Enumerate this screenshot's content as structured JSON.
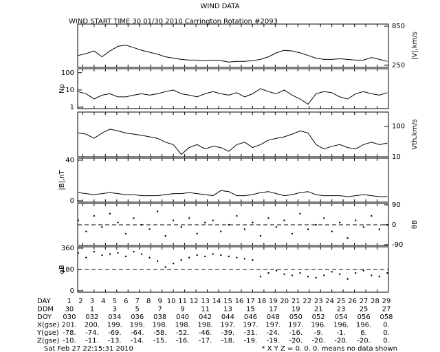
{
  "title": "WIND DATA",
  "subtitle": "WIND START TIME  30 01/30 2010 Carrington Rotation #2093",
  "chart_data": [
    {
      "type": "line",
      "axis_label": "|V|,km/s",
      "axis_side": "right",
      "log": false,
      "color": "#000000",
      "xlim": [
        1.55,
        29
      ],
      "ylim": [
        218,
        882
      ],
      "yticks": [
        850,
        250
      ],
      "x": [
        1.6,
        2.3,
        3.0,
        3.7,
        4.4,
        5.1,
        5.8,
        6.5,
        7.2,
        7.9,
        8.6,
        9.3,
        10.0,
        10.7,
        11.4,
        12.1,
        12.8,
        13.5,
        14.2,
        14.9,
        15.6,
        16.3,
        17.0,
        17.7,
        18.4,
        19.1,
        19.8,
        20.5,
        21.2,
        21.9,
        22.6,
        23.3,
        24.0,
        24.7,
        25.4,
        26.1,
        26.8,
        27.5,
        28.2,
        28.9
      ],
      "values": [
        400,
        430,
        470,
        380,
        470,
        540,
        560,
        520,
        480,
        450,
        420,
        380,
        360,
        340,
        330,
        330,
        320,
        330,
        320,
        300,
        310,
        310,
        320,
        340,
        380,
        440,
        480,
        470,
        440,
        400,
        360,
        340,
        340,
        350,
        340,
        330,
        330,
        370,
        340,
        310
      ]
    },
    {
      "type": "line",
      "axis_label": "Np",
      "axis_side": "left",
      "log": true,
      "color": "#000000",
      "xlim": [
        1.55,
        29
      ],
      "ylim": [
        0.83,
        170
      ],
      "yticks": [
        100,
        10,
        1
      ],
      "x": [
        1.6,
        2.3,
        3.0,
        3.7,
        4.4,
        5.1,
        5.8,
        6.5,
        7.2,
        7.9,
        8.6,
        9.3,
        10.0,
        10.7,
        11.4,
        12.1,
        12.8,
        13.5,
        14.2,
        14.9,
        15.6,
        16.3,
        17.0,
        17.7,
        18.4,
        19.1,
        19.8,
        20.5,
        21.2,
        21.9,
        22.6,
        23.3,
        24.0,
        24.7,
        25.4,
        26.1,
        26.8,
        27.5,
        28.2,
        28.9
      ],
      "values": [
        8,
        6,
        3,
        5,
        6,
        4,
        4,
        5,
        6,
        5,
        6,
        8,
        10,
        6,
        5,
        4,
        6,
        8,
        6,
        5,
        7,
        4,
        6,
        12,
        8,
        6,
        10,
        5,
        3,
        1.5,
        6,
        8,
        7,
        4,
        3,
        6,
        8,
        6,
        5,
        7
      ]
    },
    {
      "type": "line",
      "axis_label": "Vth,km/s",
      "axis_side": "right",
      "log": true,
      "color": "#000000",
      "xlim": [
        1.55,
        29
      ],
      "ylim": [
        10,
        290
      ],
      "yticks": [
        100,
        10
      ],
      "x": [
        1.6,
        2.3,
        3.0,
        3.7,
        4.4,
        5.1,
        5.8,
        6.5,
        7.2,
        7.9,
        8.6,
        9.3,
        10.0,
        10.7,
        11.4,
        12.1,
        12.8,
        13.5,
        14.2,
        14.9,
        15.6,
        16.3,
        17.0,
        17.7,
        18.4,
        19.1,
        19.8,
        20.5,
        21.2,
        21.9,
        22.6,
        23.3,
        24.0,
        24.7,
        25.4,
        26.1,
        26.8,
        27.5,
        28.2,
        28.9
      ],
      "values": [
        60,
        55,
        40,
        60,
        80,
        70,
        60,
        55,
        50,
        45,
        40,
        30,
        25,
        12,
        20,
        25,
        18,
        22,
        20,
        15,
        25,
        30,
        20,
        25,
        35,
        40,
        45,
        55,
        70,
        60,
        25,
        18,
        22,
        25,
        20,
        18,
        25,
        30,
        25,
        28
      ]
    },
    {
      "type": "line",
      "axis_label": "|B|,nT",
      "axis_side": "left",
      "log": false,
      "color": "#000000",
      "xlim": [
        1.55,
        29
      ],
      "ylim": [
        -1.4,
        42
      ],
      "yticks": [
        40,
        0
      ],
      "x": [
        1.6,
        2.3,
        3.0,
        3.7,
        4.4,
        5.1,
        5.8,
        6.5,
        7.2,
        7.9,
        8.6,
        9.3,
        10.0,
        10.7,
        11.4,
        12.1,
        12.8,
        13.5,
        14.2,
        14.9,
        15.6,
        16.3,
        17.0,
        17.7,
        18.4,
        19.1,
        19.8,
        20.5,
        21.2,
        21.9,
        22.6,
        23.3,
        24.0,
        24.7,
        25.4,
        26.1,
        26.8,
        27.5,
        28.2,
        28.9
      ],
      "values": [
        8,
        7,
        6,
        7,
        8,
        7,
        6,
        6,
        5,
        5,
        5,
        6,
        7,
        7,
        8,
        7,
        6,
        5,
        10,
        9,
        5,
        5,
        6,
        8,
        9,
        7,
        5,
        6,
        8,
        9,
        6,
        5,
        5,
        5,
        4,
        5,
        6,
        5,
        4,
        4
      ]
    },
    {
      "type": "scatter",
      "axis_label": "θB",
      "axis_side": "right",
      "log": false,
      "color": "#000000",
      "xlim": [
        1.55,
        29
      ],
      "ylim": [
        -93,
        96
      ],
      "yticks": [
        90,
        0,
        -90
      ],
      "reference_line": 0,
      "x": [
        1.6,
        2.3,
        3.0,
        3.7,
        4.4,
        5.1,
        5.8,
        6.5,
        7.2,
        7.9,
        8.6,
        9.3,
        10.0,
        10.7,
        11.4,
        12.1,
        12.8,
        13.5,
        14.2,
        14.9,
        15.6,
        16.3,
        17.0,
        17.7,
        18.4,
        19.1,
        19.8,
        20.5,
        21.2,
        21.9,
        22.6,
        23.3,
        24.0,
        24.7,
        25.4,
        26.1,
        26.8,
        27.5,
        28.2,
        28.9
      ],
      "values": [
        20,
        -30,
        40,
        -10,
        50,
        10,
        -40,
        30,
        0,
        -20,
        60,
        -50,
        20,
        -10,
        30,
        -40,
        10,
        20,
        -30,
        0,
        40,
        -20,
        10,
        -50,
        30,
        -10,
        20,
        -40,
        50,
        -20,
        0,
        30,
        -30,
        10,
        -60,
        20,
        -10,
        40,
        -20,
        0
      ]
    },
    {
      "type": "scatter",
      "axis_label": "φB",
      "axis_side": "left",
      "log": false,
      "color": "#000000",
      "xlim": [
        1.55,
        29
      ],
      "ylim": [
        -12,
        371
      ],
      "yticks": [
        360,
        180,
        0
      ],
      "reference_line": 180,
      "x": [
        1.6,
        2.3,
        3.0,
        3.7,
        4.4,
        5.1,
        5.8,
        6.5,
        7.2,
        7.9,
        8.6,
        9.3,
        10.0,
        10.7,
        11.4,
        12.1,
        12.8,
        13.5,
        14.2,
        14.9,
        15.6,
        16.3,
        17.0,
        17.7,
        18.4,
        19.1,
        19.8,
        20.5,
        21.2,
        21.9,
        22.6,
        23.3,
        24.0,
        24.7,
        25.4,
        26.1,
        26.8,
        27.5,
        28.2,
        28.9
      ],
      "values": [
        320,
        280,
        330,
        300,
        310,
        320,
        290,
        330,
        310,
        280,
        250,
        200,
        230,
        260,
        280,
        300,
        290,
        310,
        300,
        290,
        280,
        270,
        260,
        120,
        150,
        170,
        140,
        130,
        150,
        120,
        110,
        130,
        160,
        140,
        100,
        150,
        170,
        130,
        120,
        150
      ]
    }
  ],
  "table": {
    "rows": [
      {
        "label": "DAY",
        "cells": [
          1,
          2,
          3,
          4,
          5,
          6,
          7,
          8,
          9,
          10,
          11,
          12,
          13,
          14,
          15,
          16,
          17,
          18,
          19,
          20,
          21,
          22,
          23,
          24,
          25,
          26,
          27,
          28,
          29
        ]
      },
      {
        "label": "DDM",
        "cells": [
          "30",
          "1",
          "3",
          "5",
          "7",
          "9",
          "11",
          "13",
          "15",
          "17",
          "19",
          "21",
          "23",
          "25",
          "27"
        ]
      },
      {
        "label": "DOY",
        "cells": [
          "030",
          "032",
          "034",
          "036",
          "038",
          "040",
          "042",
          "044",
          "046",
          "048",
          "050",
          "052",
          "054",
          "056",
          "058"
        ]
      },
      {
        "label": "X(gse)",
        "cells": [
          "201.",
          "200.",
          "199.",
          "199.",
          "198.",
          "198.",
          "198.",
          "197.",
          "197.",
          "197.",
          "197.",
          "196.",
          "196.",
          "196.",
          "0."
        ]
      },
      {
        "label": "Y(gse)",
        "cells": [
          "-78.",
          "-74.",
          "-69.",
          "-64.",
          "-58.",
          "-52.",
          "-46.",
          "-39.",
          "-31.",
          "-24.",
          "-16.",
          "-9.",
          "-1.",
          "6.",
          "0."
        ]
      },
      {
        "label": "Z(gse)",
        "cells": [
          "-10.",
          "-11.",
          "-13.",
          "-14.",
          "-15.",
          "-16.",
          "-17.",
          "-18.",
          "-19.",
          "-19.",
          "-20.",
          "-20.",
          "-20.",
          "-20.",
          "0."
        ]
      }
    ]
  },
  "footer": {
    "timestamp": "Sat Feb 27 22:15:31 2010",
    "note": "* X Y Z = 0. 0. 0. means no data shown"
  }
}
